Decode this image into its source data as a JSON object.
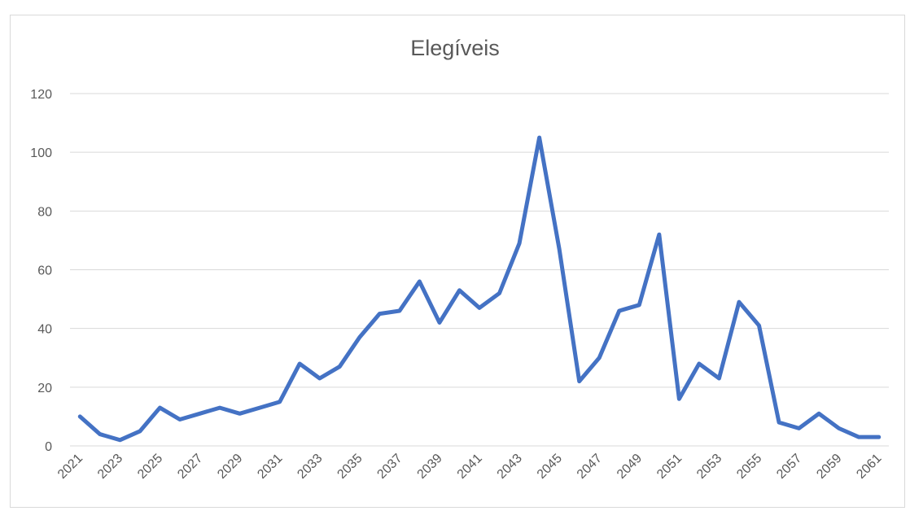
{
  "chart_data": {
    "type": "line",
    "title": "Elegíveis",
    "xlabel": "",
    "ylabel": "",
    "ylim": [
      0,
      120
    ],
    "yticks": [
      0,
      20,
      40,
      60,
      80,
      100,
      120
    ],
    "grid": true,
    "legend": "none",
    "x": [
      2021,
      2022,
      2023,
      2024,
      2025,
      2026,
      2027,
      2028,
      2029,
      2030,
      2031,
      2032,
      2033,
      2034,
      2035,
      2036,
      2037,
      2038,
      2039,
      2040,
      2041,
      2042,
      2043,
      2044,
      2045,
      2046,
      2047,
      2048,
      2049,
      2050,
      2051,
      2052,
      2053,
      2054,
      2055,
      2056,
      2057,
      2058,
      2059,
      2060,
      2061
    ],
    "xticks": [
      "2021",
      "2023",
      "2025",
      "2027",
      "2029",
      "2031",
      "2033",
      "2035",
      "2037",
      "2039",
      "2041",
      "2043",
      "2045",
      "2047",
      "2049",
      "2051",
      "2053",
      "2055",
      "2057",
      "2059",
      "2061"
    ],
    "series": [
      {
        "values": [
          10,
          4,
          2,
          5,
          13,
          9,
          11,
          13,
          11,
          13,
          15,
          28,
          23,
          27,
          37,
          45,
          46,
          56,
          42,
          53,
          47,
          52,
          69,
          105,
          67,
          22,
          30,
          46,
          48,
          72,
          16,
          28,
          23,
          49,
          41,
          8,
          6,
          11,
          6,
          3,
          3
        ],
        "color": "#4472c4"
      }
    ]
  }
}
